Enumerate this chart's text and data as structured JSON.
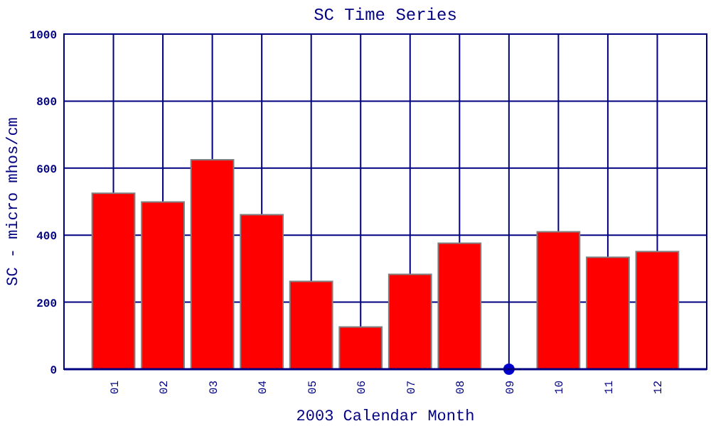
{
  "chart_data": {
    "type": "bar",
    "title": "SC Time Series",
    "xlabel": "2003 Calendar Month",
    "ylabel": "SC - micro mhos/cm",
    "categories": [
      "01",
      "02",
      "03",
      "04",
      "05",
      "06",
      "07",
      "08",
      "09",
      "10",
      "11",
      "12"
    ],
    "series": [
      {
        "color": "#ff0000",
        "values": [
          525,
          499,
          625,
          461,
          262,
          126,
          283,
          376,
          null,
          410,
          334,
          351
        ]
      },
      {
        "type": "scatter",
        "color": "#0000cc",
        "x": [
          "09"
        ],
        "values": [
          0
        ]
      }
    ],
    "ylim": [
      0,
      1000
    ],
    "yticks": [
      0,
      200,
      400,
      600,
      800,
      1000
    ],
    "grid": true,
    "marker": "circle"
  }
}
